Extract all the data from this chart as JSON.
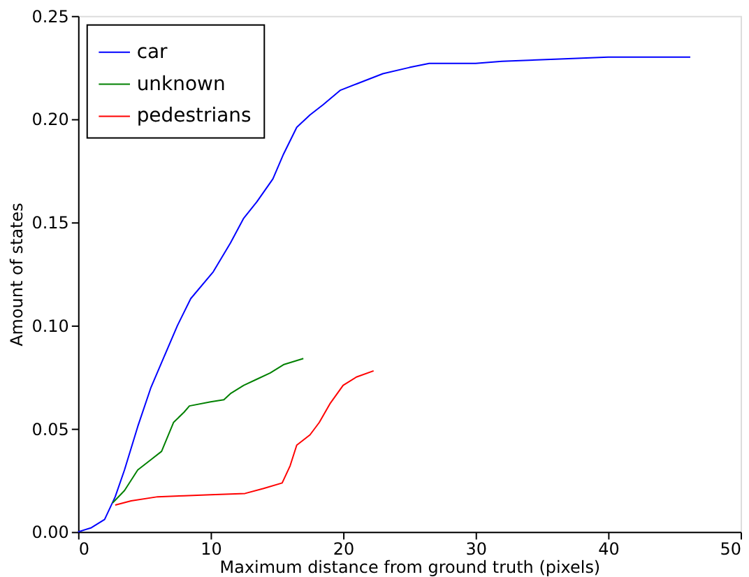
{
  "chart_data": {
    "type": "line",
    "xlabel": "Maximum distance from ground truth (pixels)",
    "ylabel": "Amount of states",
    "xlim": [
      0,
      50
    ],
    "ylim": [
      0,
      0.25
    ],
    "xticks": [
      0,
      10,
      20,
      30,
      40,
      50
    ],
    "yticks": [
      {
        "value": 0,
        "label": "0.00"
      },
      0.05,
      {
        "value": 0.1,
        "label": "0.10"
      },
      0.15,
      {
        "value": 0.2,
        "label": "0.20"
      },
      0.25
    ],
    "grid": false,
    "legend": "top left",
    "line_style": "solid",
    "marker": "none",
    "series": [
      {
        "name": "car",
        "color": "#0000ff",
        "x": [
          0,
          1,
          2,
          2.8,
          3.5,
          4.5,
          5.5,
          6.5,
          7.5,
          8.5,
          10.2,
          11.5,
          12.5,
          13.5,
          14.7,
          15.5,
          16.5,
          17.5,
          18.5,
          19.8,
          21,
          23,
          25,
          26.5,
          30,
          32,
          36,
          40,
          46.2
        ],
        "values": [
          0,
          0.002,
          0.006,
          0.017,
          0.03,
          0.051,
          0.07,
          0.085,
          0.1,
          0.113,
          0.126,
          0.14,
          0.152,
          0.16,
          0.171,
          0.183,
          0.196,
          0.202,
          0.207,
          0.214,
          0.217,
          0.222,
          0.225,
          0.227,
          0.227,
          0.228,
          0.229,
          0.23,
          0.23
        ]
      },
      {
        "name": "unknown",
        "color": "#008000",
        "x": [
          2.6,
          3.5,
          4.5,
          5.5,
          6.3,
          7.2,
          8,
          8.4,
          10,
          11,
          11.5,
          12.5,
          13.5,
          14.5,
          15.5,
          17
        ],
        "values": [
          0.014,
          0.02,
          0.03,
          0.035,
          0.039,
          0.053,
          0.058,
          0.061,
          0.063,
          0.064,
          0.067,
          0.071,
          0.074,
          0.077,
          0.081,
          0.084
        ]
      },
      {
        "name": "pedestrians",
        "color": "#ff0000",
        "x": [
          2.8,
          4,
          6,
          8,
          10,
          12.6,
          14,
          15.4,
          16,
          16.5,
          17.5,
          18.2,
          19,
          20,
          21,
          22.3
        ],
        "values": [
          0.013,
          0.015,
          0.017,
          0.0175,
          0.018,
          0.0186,
          0.021,
          0.0237,
          0.032,
          0.042,
          0.047,
          0.053,
          0.062,
          0.071,
          0.075,
          0.078
        ]
      }
    ]
  }
}
